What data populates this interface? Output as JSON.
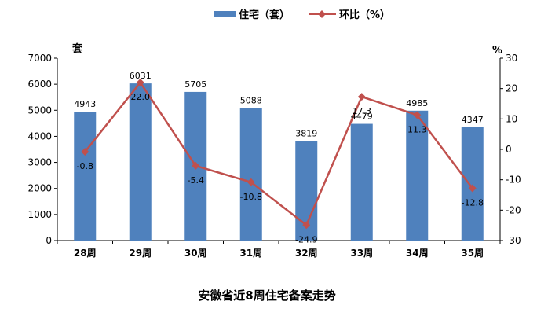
{
  "chart_data": {
    "type": "bar+line",
    "title": "安徽省近8周住宅备案走势",
    "categories": [
      "28周",
      "29周",
      "30周",
      "31周",
      "32周",
      "33周",
      "34周",
      "35周"
    ],
    "series": [
      {
        "name": "住宅（套）",
        "type": "bar",
        "axis": "left",
        "color": "#4F81BD",
        "values": [
          4943,
          6031,
          5705,
          5088,
          3819,
          4479,
          4985,
          4347
        ]
      },
      {
        "name": "环比（%）",
        "type": "line",
        "axis": "right",
        "color": "#C0504D",
        "values": [
          -0.8,
          22.0,
          -5.4,
          -10.8,
          -24.9,
          17.3,
          11.3,
          -12.8
        ]
      }
    ],
    "bar_labels": [
      "4943",
      "6031",
      "5705",
      "5088",
      "3819",
      "4479",
      "4985",
      "4347"
    ],
    "line_labels": [
      "-0.8",
      "22.0",
      "-5.4",
      "-10.8",
      "-24.9",
      "17.3",
      "11.3",
      "-12.8"
    ],
    "y_left": {
      "unit": "套",
      "min": 0,
      "max": 7000,
      "step": 1000
    },
    "y_right": {
      "unit": "%",
      "min": -30,
      "max": 30,
      "step": 10
    },
    "legend_position": "top",
    "grid": false
  }
}
